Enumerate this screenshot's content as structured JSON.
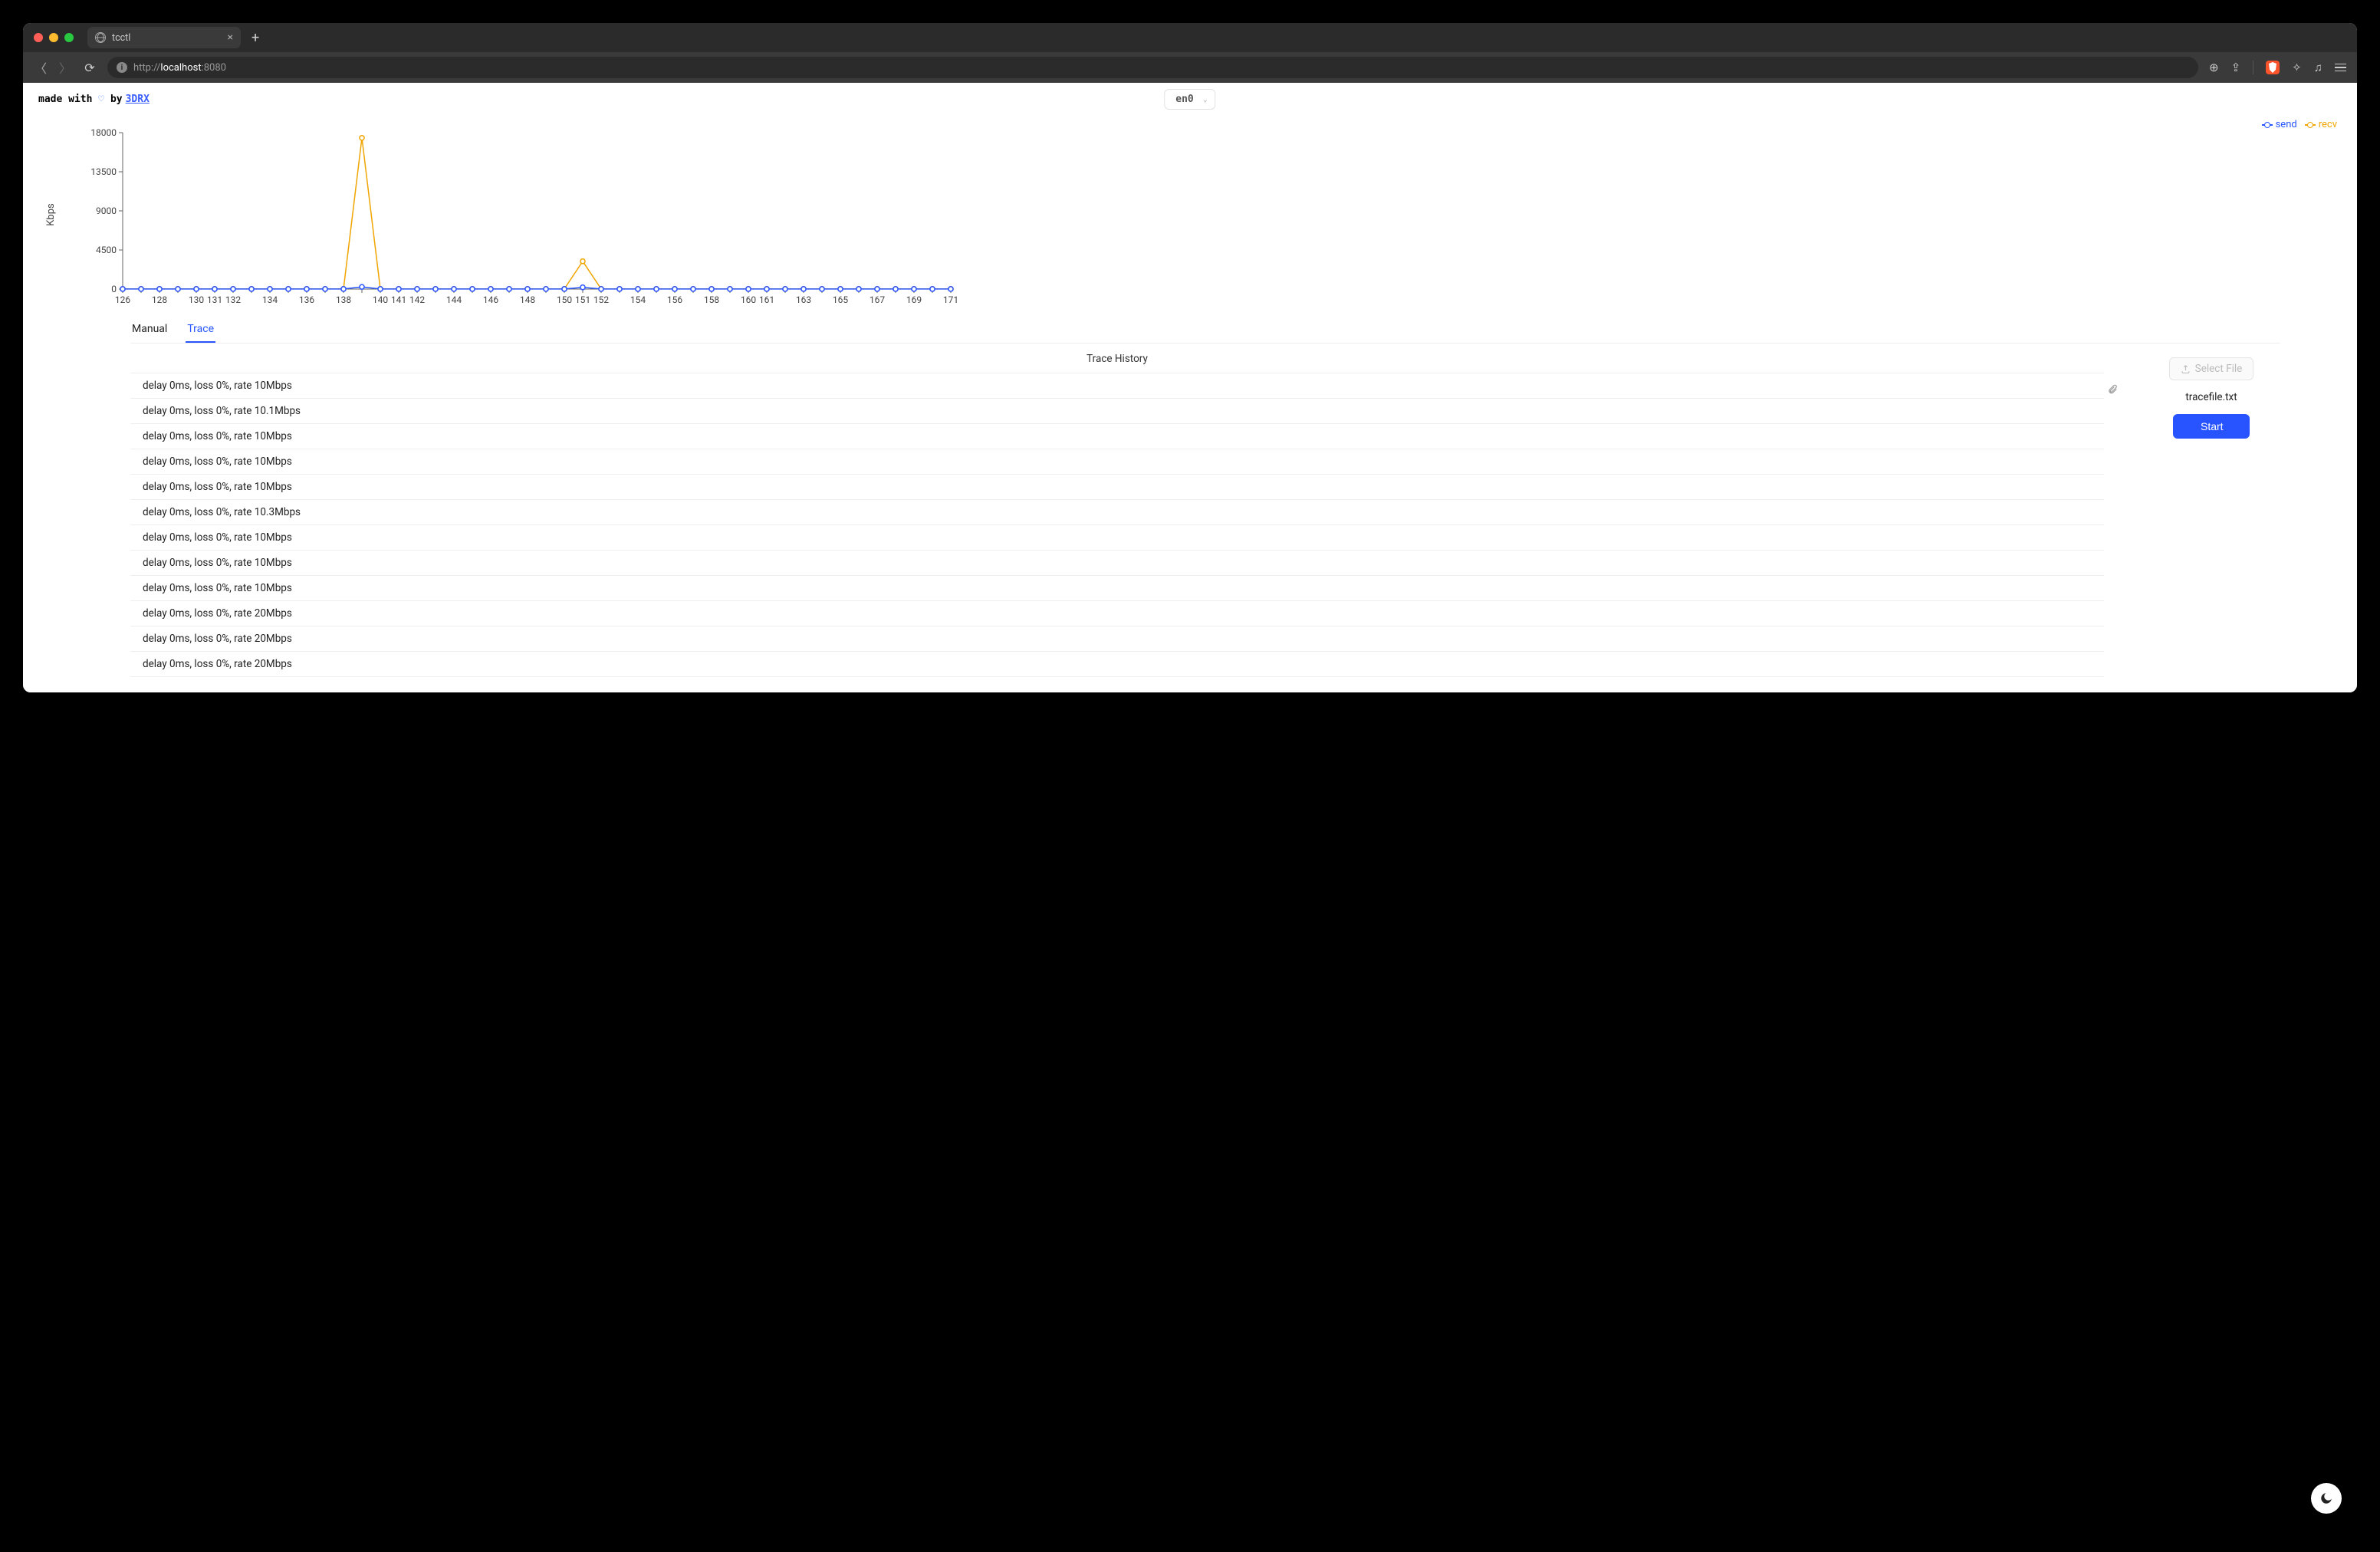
{
  "browser": {
    "tab_title": "tcctl",
    "url_prefix": "http://",
    "url_host": "localhost",
    "url_port": ":8080"
  },
  "header": {
    "made_with": "made with",
    "by": "by",
    "author": "3DRX",
    "interface": "en0"
  },
  "chart": {
    "type": "line",
    "ylabel": "Kbps",
    "ylim": [
      0,
      18000
    ],
    "yticks": [
      0,
      4500,
      9000,
      13500,
      18000
    ],
    "x_values": [
      126,
      127,
      128,
      129,
      130,
      131,
      132,
      133,
      134,
      135,
      136,
      137,
      138,
      139,
      140,
      141,
      142,
      143,
      144,
      145,
      146,
      147,
      148,
      149,
      150,
      151,
      152,
      153,
      154,
      155,
      156,
      157,
      158,
      159,
      160,
      161,
      162,
      163,
      164,
      165,
      166,
      167,
      168,
      169,
      170,
      171
    ],
    "x_tick_labels": [
      "126",
      "",
      "128",
      "",
      "130",
      "131",
      "132",
      "",
      "134",
      "",
      "136",
      "",
      "138",
      "",
      "140",
      "141",
      "142",
      "",
      "144",
      "",
      "146",
      "",
      "148",
      "",
      "150",
      "151",
      "152",
      "",
      "154",
      "",
      "156",
      "",
      "158",
      "",
      "160",
      "161",
      "",
      "163",
      "",
      "165",
      "",
      "167",
      "",
      "169",
      "",
      "171"
    ],
    "series": {
      "send": {
        "label": "send",
        "color": "#2754ff",
        "marker": "circle",
        "marker_size": 4,
        "line_width": 1.5,
        "values": [
          10,
          10,
          10,
          10,
          10,
          10,
          10,
          10,
          10,
          10,
          10,
          10,
          10,
          250,
          10,
          10,
          10,
          10,
          10,
          10,
          10,
          10,
          10,
          10,
          10,
          200,
          10,
          10,
          10,
          10,
          10,
          10,
          10,
          10,
          10,
          10,
          10,
          10,
          10,
          10,
          10,
          10,
          10,
          10,
          10,
          10
        ]
      },
      "recv": {
        "label": "recv",
        "color": "#f0a500",
        "marker": "circle",
        "marker_size": 4,
        "line_width": 1.5,
        "values": [
          20,
          20,
          20,
          20,
          20,
          20,
          20,
          20,
          20,
          20,
          20,
          20,
          20,
          17400,
          20,
          20,
          20,
          20,
          20,
          20,
          20,
          20,
          20,
          20,
          20,
          3200,
          20,
          20,
          20,
          20,
          20,
          20,
          20,
          20,
          20,
          20,
          20,
          20,
          20,
          20,
          20,
          20,
          20,
          20,
          20,
          20
        ]
      }
    },
    "background_color": "#ffffff",
    "axis_color": "#666666"
  },
  "tabs": {
    "items": [
      "Manual",
      "Trace"
    ],
    "active_index": 1
  },
  "trace": {
    "title": "Trace History",
    "history": [
      "delay 0ms, loss 0%, rate 10Mbps",
      "delay 0ms, loss 0%, rate 10.1Mbps",
      "delay 0ms, loss 0%, rate 10Mbps",
      "delay 0ms, loss 0%, rate 10Mbps",
      "delay 0ms, loss 0%, rate 10Mbps",
      "delay 0ms, loss 0%, rate 10.3Mbps",
      "delay 0ms, loss 0%, rate 10Mbps",
      "delay 0ms, loss 0%, rate 10Mbps",
      "delay 0ms, loss 0%, rate 10Mbps",
      "delay 0ms, loss 0%, rate 20Mbps",
      "delay 0ms, loss 0%, rate 20Mbps",
      "delay 0ms, loss 0%, rate 20Mbps"
    ],
    "select_file_label": "Select File",
    "file_name": "tracefile.txt",
    "start_label": "Start"
  }
}
